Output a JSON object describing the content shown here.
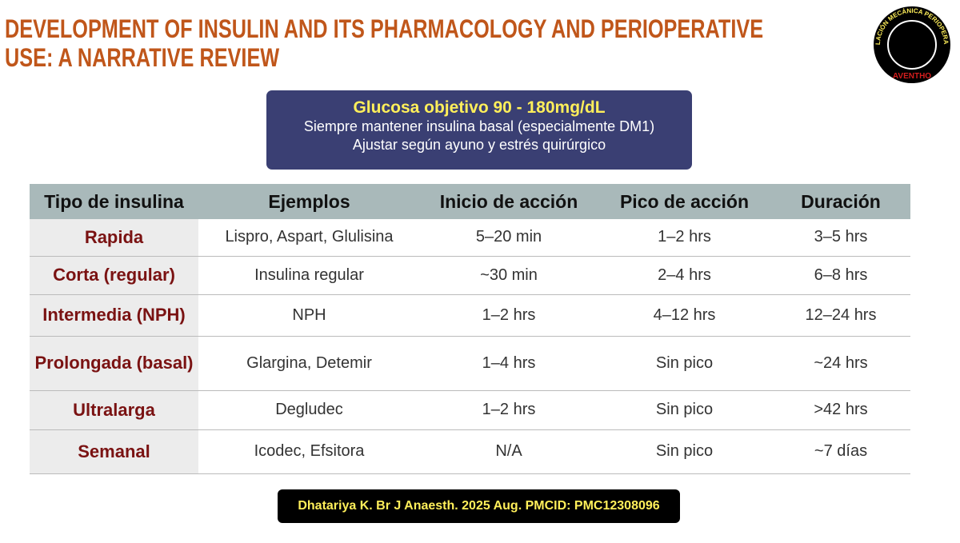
{
  "header": {
    "title_lines": [
      "DEVELOPMENT OF INSULIN AND ITS PHARMACOLOGY AND PERIOPERATIVE",
      "USE: A NARRATIVE REVIEW"
    ]
  },
  "logo": {
    "ring_text": "VENTILACIÓN MECÁNICA PERIOPERATORIA",
    "brand": "AVENTHO"
  },
  "summary": {
    "highlight": "Glucosa objetivo 90 - 180mg/dL",
    "lines": [
      "Siempre mantener insulina basal (especialmente DM1)",
      "Ajustar según ayuno y estrés quirúrgico"
    ]
  },
  "table": {
    "columns": [
      "Tipo de insulina",
      "Ejemplos",
      "Inicio de acción",
      "Pico de acción",
      "Duración"
    ],
    "rows": [
      [
        "Rapida",
        "Lispro, Aspart, Glulisina",
        "5–20 min",
        "1–2 hrs",
        "3–5 hrs"
      ],
      [
        "Corta (regular)",
        "Insulina regular",
        "~30 min",
        "2–4 hrs",
        "6–8 hrs"
      ],
      [
        "Intermedia (NPH)",
        "NPH",
        "1–2 hrs",
        "4–12 hrs",
        "12–24 hrs"
      ],
      [
        "Prolongada (basal)",
        "Glargina, Detemir",
        "1–4 hrs",
        "Sin pico",
        "~24 hrs"
      ],
      [
        "Ultralarga",
        "Degludec",
        "1–2 hrs",
        "Sin pico",
        ">42 hrs"
      ],
      [
        "Semanal",
        "Icodec, Efsitora",
        "N/A",
        "Sin pico",
        "~7 días"
      ]
    ]
  },
  "footer": {
    "citation": "Dhatariya K. Br J Anaesth. 2025 Aug. PMCID: PMC12308096"
  }
}
